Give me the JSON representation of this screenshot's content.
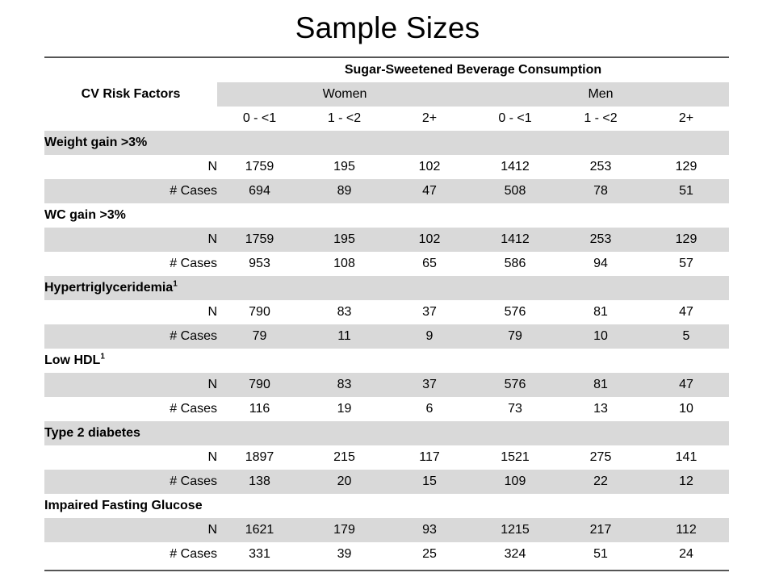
{
  "title": "Sample Sizes",
  "header": {
    "row_label": "CV Risk Factors",
    "group_title": "Sugar-Sweetened Beverage Consumption",
    "groups": [
      "Women",
      "Men"
    ],
    "columns": [
      "0 - <1",
      "1 - <2",
      "2+",
      "0 - <1",
      "1 - <2",
      "2+"
    ]
  },
  "sections": [
    {
      "name": "Weight gain >3%",
      "sup": "",
      "rows": [
        {
          "label": "N",
          "values": [
            "1759",
            "195",
            "102",
            "1412",
            "253",
            "129"
          ]
        },
        {
          "label": "# Cases",
          "values": [
            "694",
            "89",
            "47",
            "508",
            "78",
            "51"
          ]
        }
      ]
    },
    {
      "name": "WC gain >3%",
      "sup": "",
      "rows": [
        {
          "label": "N",
          "values": [
            "1759",
            "195",
            "102",
            "1412",
            "253",
            "129"
          ]
        },
        {
          "label": "# Cases",
          "values": [
            "953",
            "108",
            "65",
            "586",
            "94",
            "57"
          ]
        }
      ]
    },
    {
      "name": "Hypertriglyceridemia",
      "sup": "1",
      "rows": [
        {
          "label": "N",
          "values": [
            "790",
            "83",
            "37",
            "576",
            "81",
            "47"
          ]
        },
        {
          "label": "# Cases",
          "values": [
            "79",
            "11",
            "9",
            "79",
            "10",
            "5"
          ]
        }
      ]
    },
    {
      "name": "Low HDL",
      "sup": "1",
      "rows": [
        {
          "label": "N",
          "values": [
            "790",
            "83",
            "37",
            "576",
            "81",
            "47"
          ]
        },
        {
          "label": "# Cases",
          "values": [
            "116",
            "19",
            "6",
            "73",
            "13",
            "10"
          ]
        }
      ]
    },
    {
      "name": "Type 2 diabetes",
      "sup": "",
      "rows": [
        {
          "label": "N",
          "values": [
            "1897",
            "215",
            "117",
            "1521",
            "275",
            "141"
          ]
        },
        {
          "label": "# Cases",
          "values": [
            "138",
            "20",
            "15",
            "109",
            "22",
            "12"
          ]
        }
      ]
    },
    {
      "name": "Impaired Fasting Glucose",
      "sup": "",
      "rows": [
        {
          "label": "N",
          "values": [
            "1621",
            "179",
            "93",
            "1215",
            "217",
            "112"
          ]
        },
        {
          "label": "# Cases",
          "values": [
            "331",
            "39",
            "25",
            "324",
            "51",
            "24"
          ]
        }
      ]
    }
  ],
  "colors": {
    "shade": "#d9d9d9",
    "rule": "#555555",
    "text": "#000000"
  }
}
